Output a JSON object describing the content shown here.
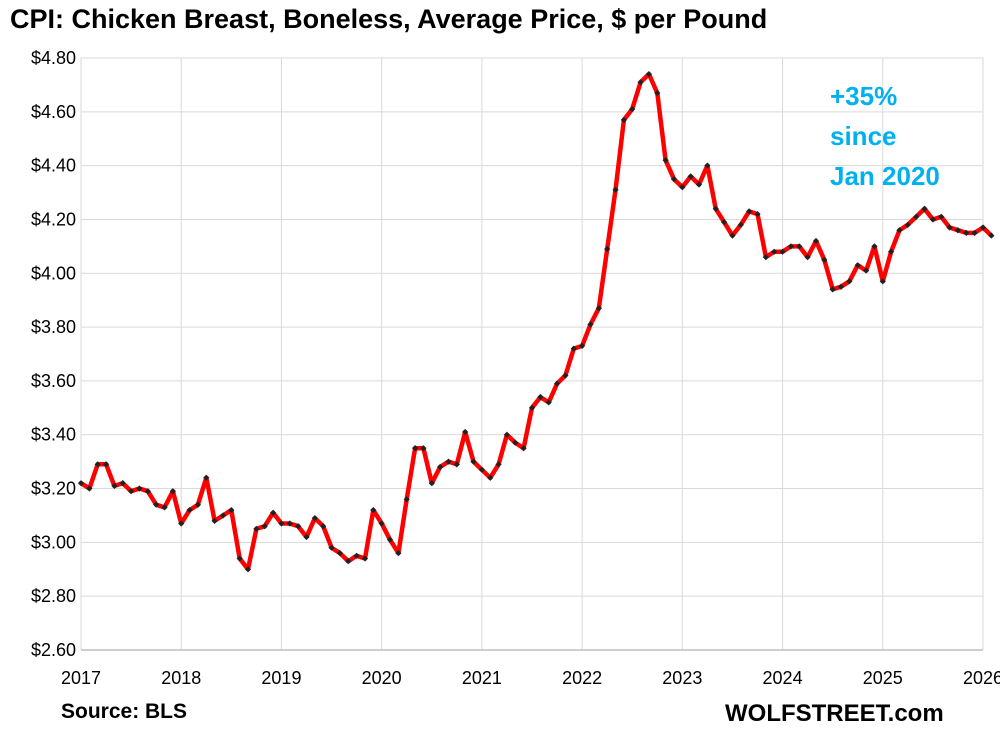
{
  "colors": {
    "line": "#ff0000",
    "marker": "#222222",
    "annotation": "#00b0f0",
    "grid": "#d9d9d9"
  },
  "annotation": {
    "lines": [
      "+35%",
      "since",
      "Jan 2020"
    ]
  },
  "footer": {
    "source": "Source: BLS",
    "brand": "WOLFSTREET.com"
  },
  "chart_data": {
    "type": "line",
    "title": "CPI: Chicken Breast, Boneless, Average Price, $ per Pound",
    "xlabel": "",
    "ylabel": "",
    "ylim": [
      2.6,
      4.8
    ],
    "y_ticks": [
      "$2.60",
      "$2.80",
      "$3.00",
      "$3.20",
      "$3.40",
      "$3.60",
      "$3.80",
      "$4.00",
      "$4.20",
      "$4.40",
      "$4.60",
      "$4.80"
    ],
    "x_ticks": [
      "2017",
      "2018",
      "2019",
      "2020",
      "2021",
      "2022",
      "2023",
      "2024",
      "2025",
      "2026"
    ],
    "grid": true,
    "legend": "none",
    "x_start": "2017-01",
    "series": [
      {
        "values": [
          3.22,
          3.2,
          3.29,
          3.29,
          3.21,
          3.22,
          3.19,
          3.2,
          3.19,
          3.14,
          3.13,
          3.19,
          3.07,
          3.12,
          3.14,
          3.24,
          3.08,
          3.1,
          3.12,
          2.94,
          2.9,
          3.05,
          3.06,
          3.11,
          3.07,
          3.07,
          3.06,
          3.02,
          3.09,
          3.06,
          2.98,
          2.96,
          2.93,
          2.95,
          2.94,
          3.12,
          3.07,
          3.01,
          2.96,
          3.16,
          3.35,
          3.35,
          3.22,
          3.28,
          3.3,
          3.29,
          3.41,
          3.3,
          3.27,
          3.24,
          3.29,
          3.4,
          3.37,
          3.35,
          3.5,
          3.54,
          3.52,
          3.59,
          3.62,
          3.72,
          3.73,
          3.81,
          3.87,
          4.09,
          4.31,
          4.57,
          4.61,
          4.71,
          4.74,
          4.67,
          4.42,
          4.35,
          4.32,
          4.36,
          4.33,
          4.4,
          4.24,
          4.19,
          4.14,
          4.18,
          4.23,
          4.22,
          4.06,
          4.08,
          4.08,
          4.1,
          4.1,
          4.06,
          4.12,
          4.05,
          3.94,
          3.95,
          3.97,
          4.03,
          4.01,
          4.1,
          3.97,
          4.08,
          4.16,
          4.18,
          4.21,
          4.24,
          4.2,
          4.21,
          4.17,
          4.16,
          4.15,
          4.15,
          4.17,
          4.14
        ]
      }
    ]
  }
}
